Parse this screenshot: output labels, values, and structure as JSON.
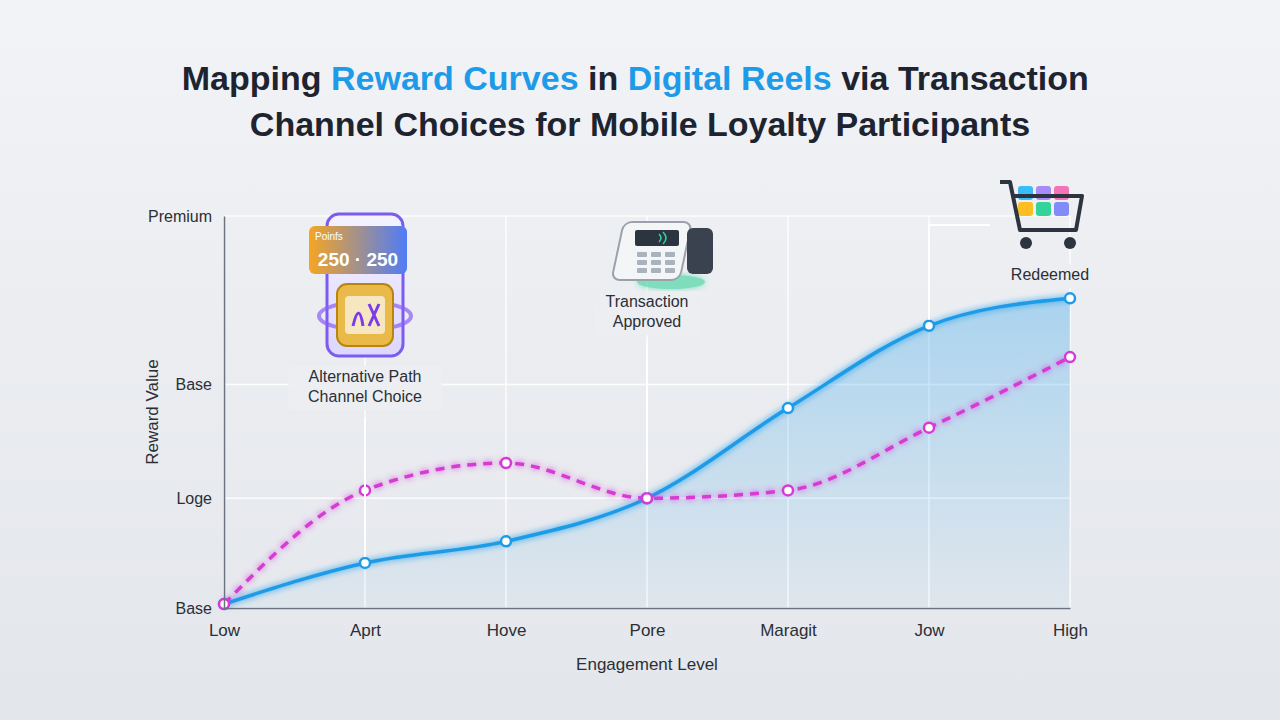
{
  "chart_data": {
    "type": "line",
    "title": [
      {
        "text": "Mapping ",
        "color": "#1d2430"
      },
      {
        "text": "Reward Curves",
        "color": "#1e9be8"
      },
      {
        "text": " in ",
        "color": "#1d2430"
      },
      {
        "text": "Digital Reels",
        "color": "#1e9be8"
      },
      {
        "text": " via Transaction ",
        "color": "#1d2430"
      },
      {
        "text": "Channel Choices for Mobile Loyalty Participants",
        "color": "#1d2430"
      }
    ],
    "x_label": "Engagement Level",
    "y_label": "Reward Value",
    "categories": [
      "Low",
      "Aprt",
      "Hove",
      "Pore",
      "Maragit",
      "Jow",
      "High"
    ],
    "ylim": [
      0,
      100
    ],
    "yticks": [
      {
        "value": 0,
        "label": "Base"
      },
      {
        "value": 28,
        "label": "Loge"
      },
      {
        "value": 57,
        "label": "Base"
      },
      {
        "value": 100,
        "label": "Premium"
      }
    ],
    "grid": true,
    "series": [
      {
        "type": "area",
        "color": "#1e9be8",
        "line_style": "solid",
        "marker": "circle",
        "values": [
          1,
          11.5,
          17,
          28,
          51,
          72,
          79
        ]
      },
      {
        "type": "line",
        "color": "#d63ad6",
        "line_style": "dashed",
        "marker": "circle",
        "values": [
          1,
          30,
          37,
          28,
          30,
          46,
          64
        ]
      }
    ],
    "annotations": [
      {
        "text": [
          "Alternative Path",
          "Channel Choice"
        ],
        "x": "Aprt",
        "badge": [
          "Poinfs",
          "250 · 250"
        ]
      },
      {
        "text": [
          "Transaction",
          "Approved"
        ],
        "x": "Pore"
      },
      {
        "text": [
          "Redeemed"
        ],
        "x": "Jow"
      }
    ]
  }
}
